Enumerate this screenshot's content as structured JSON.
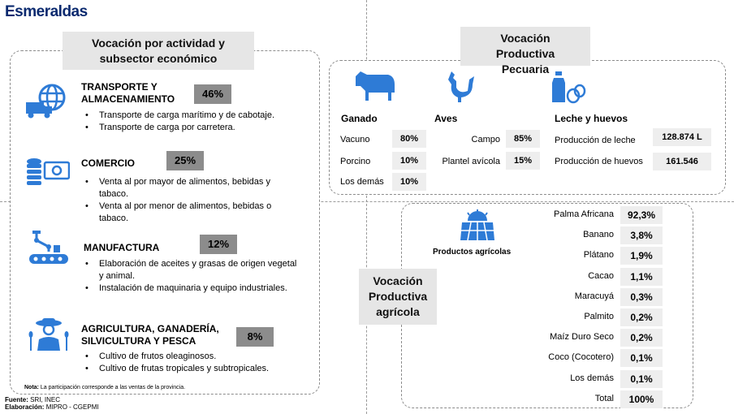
{
  "title": "Esmeraldas",
  "left_header": "Vocación por actividad y subsector económico",
  "sectors": [
    {
      "name_lines": [
        "TRANSPORTE Y",
        "ALMACENAMIENTO"
      ],
      "pct": "46%",
      "icon": "truck-globe-icon",
      "bullets": [
        "Transporte de carga marítimo y de cabotaje.",
        "Transporte de carga por carretera."
      ]
    },
    {
      "name_lines": [
        "COMERCIO"
      ],
      "pct": "25%",
      "icon": "coins-money-icon",
      "bullets": [
        "Venta al por mayor de alimentos, bebidas y tabaco.",
        "Venta al por menor de alimentos, bebidas o tabaco."
      ]
    },
    {
      "name_lines": [
        "MANUFACTURA"
      ],
      "pct": "12%",
      "icon": "robot-arm-conveyor-icon",
      "bullets": [
        "Elaboración de aceites y grasas de origen vegetal y animal.",
        "Instalación de maquinaria y equipo industriales."
      ]
    },
    {
      "name_lines": [
        "AGRICULTURA, GANADERÍA,",
        "SILVICULTURA Y PESCA"
      ],
      "pct": "8%",
      "icon": "farmer-icon",
      "bullets": [
        "Cultivo de frutos oleaginosos.",
        "Cultivo de frutas tropicales y subtropicales."
      ]
    }
  ],
  "nota_label": "Nota:",
  "nota_text": "La participación corresponde a las ventas de la provincia.",
  "fuente_label": "Fuente:",
  "fuente_text": "SRI, INEC",
  "elaboracion_label": "Elaboración:",
  "elaboracion_text": "MIPRO - CGEPMI",
  "pecuaria": {
    "header": "Vocación Productiva Pecuaria",
    "ganado": {
      "title": "Ganado",
      "icon": "cow-icon",
      "rows": [
        {
          "label": "Vacuno",
          "value": "80%"
        },
        {
          "label": "Porcino",
          "value": "10%"
        },
        {
          "label": "Los demás",
          "value": "10%"
        }
      ]
    },
    "aves": {
      "title": "Aves",
      "icon": "rooster-icon",
      "rows": [
        {
          "label": "Campo",
          "value": "85%"
        },
        {
          "label": "Plantel avícola",
          "value": "15%"
        }
      ]
    },
    "leche": {
      "title": "Leche y huevos",
      "icon": "milk-eggs-icon",
      "rows": [
        {
          "label": "Producción de leche",
          "value": "128.874 L"
        },
        {
          "label": "Producción de huevos",
          "value": "161.546"
        }
      ]
    }
  },
  "agricola": {
    "header": "Vocación Productiva agrícola",
    "icon": "field-sun-icon",
    "products_label": "Productos agrícolas",
    "rows": [
      {
        "label": "Palma Africana",
        "value": "92,3%"
      },
      {
        "label": "Banano",
        "value": "3,8%"
      },
      {
        "label": "Plátano",
        "value": "1,9%"
      },
      {
        "label": "Cacao",
        "value": "1,1%"
      },
      {
        "label": "Maracuyá",
        "value": "0,3%"
      },
      {
        "label": "Palmito",
        "value": "0,2%"
      },
      {
        "label": "Maíz Duro Seco",
        "value": "0,2%"
      },
      {
        "label": "Coco (Cocotero)",
        "value": "0,1%"
      },
      {
        "label": "Los demás",
        "value": "0,1%"
      },
      {
        "label": "Total",
        "value": "100%"
      }
    ]
  },
  "colors": {
    "title": "#0b2a6f",
    "icon": "#2e7bd6",
    "pct_box": "#8c8c8c",
    "header_box": "#e6e6e6"
  }
}
